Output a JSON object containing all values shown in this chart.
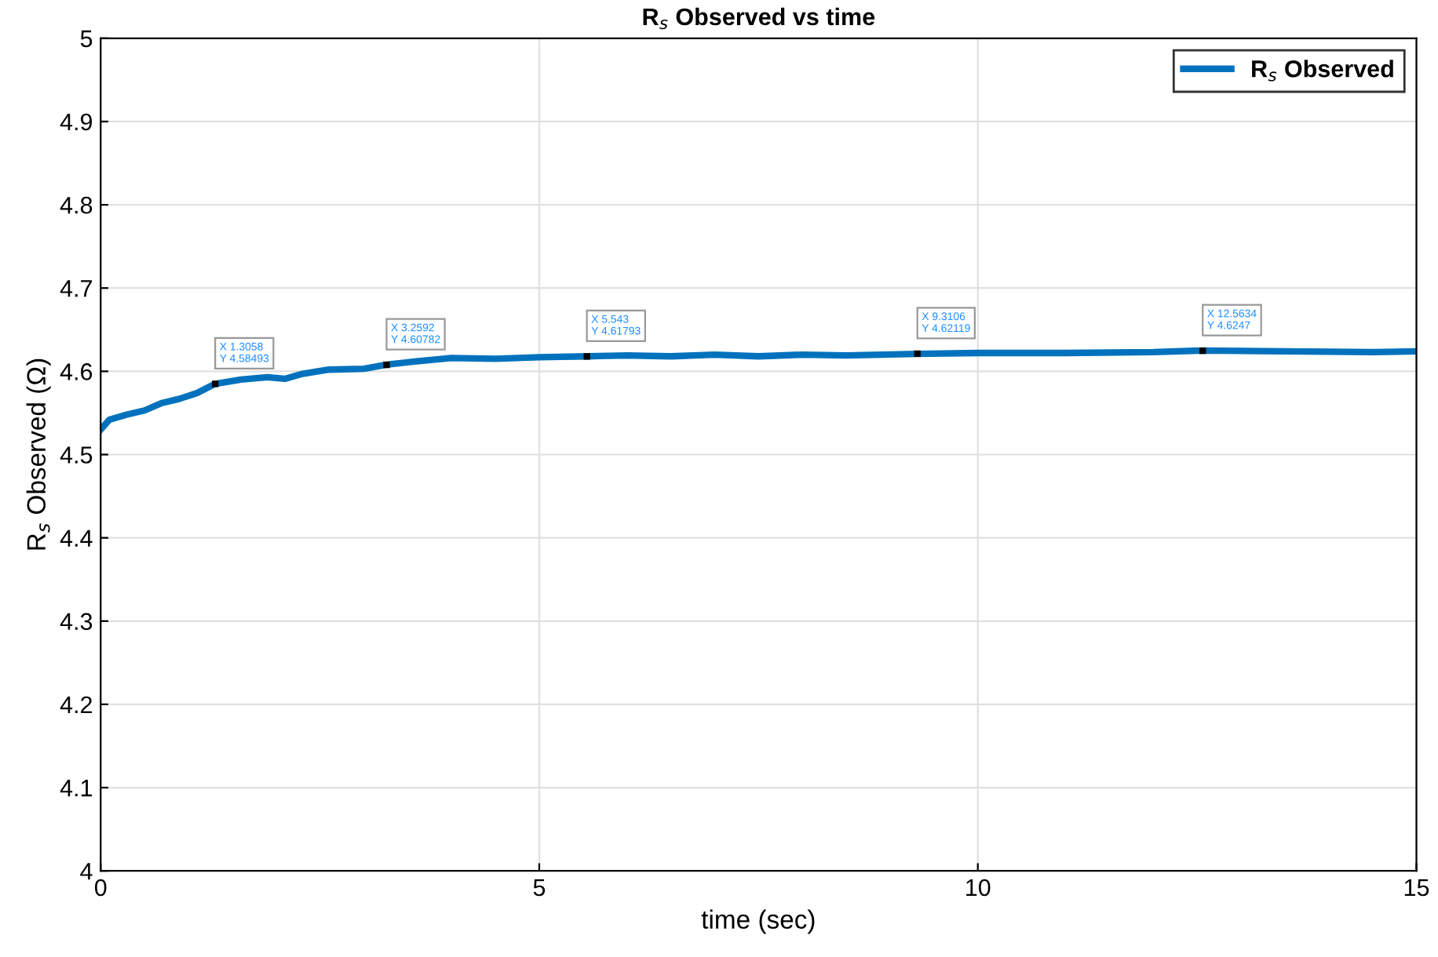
{
  "chart_data": {
    "type": "line",
    "title": "R$_{s}$ Observed vs time",
    "xlabel": "time (sec)",
    "ylabel": "R$_{s}$ Observed (Ω)",
    "xlim": [
      0,
      15
    ],
    "xticks": [
      0,
      5,
      10,
      15
    ],
    "ylim": [
      4,
      5
    ],
    "yticks": [
      4,
      4.1,
      4.2,
      4.3,
      4.4,
      4.5,
      4.6,
      4.7,
      4.8,
      4.9,
      5
    ],
    "grid": true,
    "legend": "top right",
    "line_style": "solid",
    "marker": "none",
    "series": [
      {
        "name": "R$_{s}$ Observed",
        "color": "#0072bd",
        "x": [
          0,
          0.1,
          0.3,
          0.5,
          0.7,
          0.9,
          1.1,
          1.3058,
          1.6,
          1.9,
          2.1,
          2.3,
          2.6,
          3.0,
          3.2592,
          3.6,
          4.0,
          4.5,
          5.0,
          5.543,
          6.0,
          6.5,
          7.0,
          7.5,
          8.0,
          8.5,
          9.3106,
          10,
          11,
          12,
          12.5634,
          13.5,
          14.5,
          15
        ],
        "values": [
          4.53,
          4.542,
          4.548,
          4.553,
          4.562,
          4.567,
          4.574,
          4.585,
          4.59,
          4.593,
          4.591,
          4.597,
          4.602,
          4.603,
          4.608,
          4.612,
          4.616,
          4.615,
          4.617,
          4.618,
          4.619,
          4.618,
          4.62,
          4.618,
          4.62,
          4.619,
          4.621,
          4.622,
          4.622,
          4.623,
          4.625,
          4.624,
          4.623,
          4.624
        ]
      }
    ],
    "annotations": [
      {
        "text": "X 1.3058\nY 4.58493",
        "x": 1.3058,
        "y": 4.58493
      },
      {
        "text": "X 3.2592\nY 4.60782",
        "x": 3.2592,
        "y": 4.60782
      },
      {
        "text": "X 5.543\nY 4.61793",
        "x": 5.543,
        "y": 4.61793
      },
      {
        "text": "X 9.3106\nY 4.62119",
        "x": 9.3106,
        "y": 4.62119
      },
      {
        "text": "X 12.5634\nY 4.6247",
        "x": 12.5634,
        "y": 4.6247
      }
    ]
  }
}
